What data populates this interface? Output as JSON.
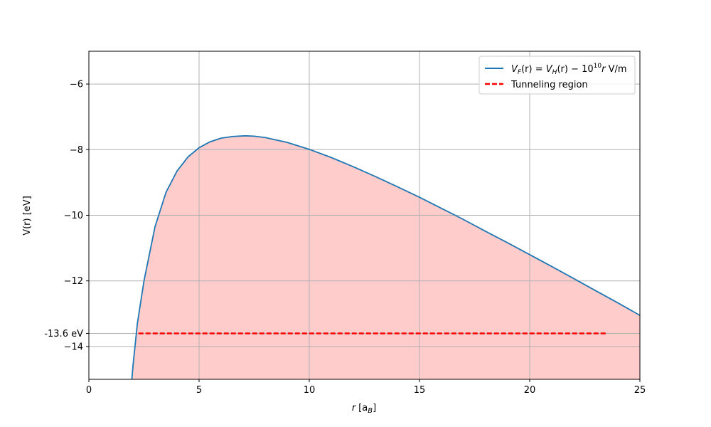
{
  "chart_data": {
    "type": "line",
    "xlabel_var": "r",
    "xlabel_unit": "[a",
    "xlabel_unit_sub": "B",
    "xlabel_unit_close": "]",
    "ylabel": "V(r) [eV]",
    "xlim": [
      0,
      25
    ],
    "ylim": [
      -15,
      -5
    ],
    "grid": true,
    "legend_position": "top-right",
    "x_ticks": [
      0,
      5,
      10,
      15,
      20,
      25
    ],
    "x_tick_labels": [
      "0",
      "5",
      "10",
      "15",
      "20",
      "25"
    ],
    "y_ticks": [
      -6,
      -8,
      -10,
      -12,
      -14
    ],
    "y_tick_labels": [
      "−6",
      "−8",
      "−10",
      "−12",
      "−14"
    ],
    "extra_y_tick": {
      "value": -13.6,
      "label": "-13.6 eV"
    },
    "series": [
      {
        "name": "V_F(r) = V_H(r) − 10^10 r V/m",
        "legend_parts": {
          "v": "V",
          "f_sub": "F",
          "r1": "(r) = ",
          "v2": "V",
          "h_sub": "H",
          "r2": "(r) − 10",
          "exp": "10",
          "r3": "r",
          "unit": " V/m"
        },
        "color": "#1f77b4",
        "x": [
          1.95,
          2.0,
          2.2,
          2.5,
          3.0,
          3.5,
          4.0,
          4.5,
          5.0,
          5.5,
          6.0,
          6.5,
          7.0,
          7.2,
          7.5,
          8.0,
          9.0,
          10.0,
          11.0,
          12.0,
          13.0,
          14.0,
          15.0,
          16.0,
          17.0,
          18.0,
          19.0,
          20.0,
          21.0,
          22.0,
          23.0,
          24.0,
          25.0
        ],
        "y": [
          -15.0,
          -14.6,
          -13.3,
          -12.0,
          -10.35,
          -9.3,
          -8.65,
          -8.22,
          -7.94,
          -7.76,
          -7.65,
          -7.6,
          -7.58,
          -7.58,
          -7.59,
          -7.63,
          -7.78,
          -7.99,
          -8.24,
          -8.52,
          -8.82,
          -9.13,
          -9.45,
          -9.79,
          -10.13,
          -10.49,
          -10.84,
          -11.2,
          -11.56,
          -11.93,
          -12.3,
          -12.67,
          -13.05
        ]
      },
      {
        "name": "Tunneling region",
        "color": "#ff0000",
        "style": "dashed",
        "x": [
          2.25,
          23.5
        ],
        "y": [
          -13.6,
          -13.6
        ]
      }
    ],
    "fill": {
      "color": "#ffcccc",
      "under_series": 0
    }
  }
}
